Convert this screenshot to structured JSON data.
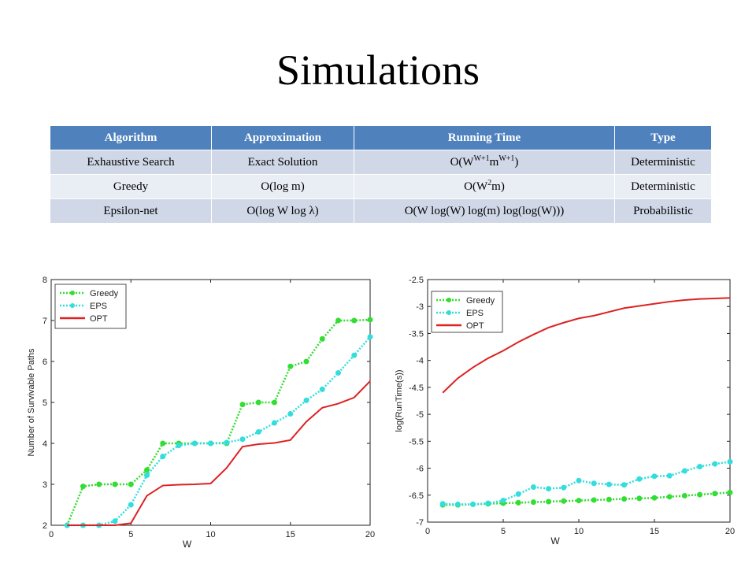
{
  "slide": {
    "title": "Simulations"
  },
  "table": {
    "headers": [
      "Algorithm",
      "Approximation",
      "Running Time",
      "Type"
    ],
    "rows": [
      {
        "algorithm": "Exhaustive Search",
        "approximation": "Exact Solution",
        "running_time": {
          "base": "O(W",
          "sup1": "W+1",
          "mid": "m",
          "sup2": "W+1",
          "end": ")"
        },
        "type": "Deterministic"
      },
      {
        "algorithm": "Greedy",
        "approximation": "O(log m)",
        "running_time": {
          "base": "O(W",
          "sup1": "2",
          "mid": "m)",
          "sup2": "",
          "end": ""
        },
        "type": "Deterministic"
      },
      {
        "algorithm": "Epsilon-net",
        "approximation": "O(log W log λ)",
        "running_time": {
          "base": "O(W log(W) log(m) log(log(W)))",
          "sup1": "",
          "mid": "",
          "sup2": "",
          "end": ""
        },
        "type": "Probabilistic"
      }
    ]
  },
  "chart_data": [
    {
      "type": "line",
      "xlabel": "W",
      "ylabel": "Number of Survivable Paths",
      "xlim": [
        0,
        20
      ],
      "ylim": [
        2,
        8
      ],
      "xticks": [
        0,
        5,
        10,
        15,
        20
      ],
      "yticks": [
        2,
        3,
        4,
        5,
        6,
        7,
        8
      ],
      "legend_position": "top-left",
      "x": [
        1,
        2,
        3,
        4,
        5,
        6,
        7,
        8,
        9,
        10,
        11,
        12,
        13,
        14,
        15,
        16,
        17,
        18,
        19,
        20
      ],
      "series": [
        {
          "name": "Greedy",
          "color": "#33dd33",
          "style": "dotted-marker",
          "values": [
            2,
            2.95,
            3,
            3,
            3,
            3.35,
            4,
            4,
            4,
            4,
            4,
            4.95,
            5,
            5,
            5.88,
            6,
            6.55,
            7,
            7,
            7.02
          ]
        },
        {
          "name": "EPS",
          "color": "#33dddd",
          "style": "dotted-marker",
          "values": [
            2,
            2,
            2,
            2.1,
            2.5,
            3.22,
            3.68,
            3.95,
            4,
            4,
            4.02,
            4.1,
            4.28,
            4.5,
            4.72,
            5.05,
            5.32,
            5.72,
            6.15,
            6.6
          ]
        },
        {
          "name": "OPT",
          "color": "#dd2222",
          "style": "solid",
          "values": [
            2,
            2,
            2,
            2,
            2.05,
            2.72,
            2.97,
            2.99,
            3,
            3.02,
            3.4,
            3.92,
            3.98,
            4.01,
            4.08,
            4.53,
            4.87,
            4.97,
            5.12,
            5.52
          ]
        }
      ]
    },
    {
      "type": "line",
      "xlabel": "W",
      "ylabel": "log(RunTime(s))",
      "xlim": [
        0,
        20
      ],
      "ylim": [
        -7,
        -2.5
      ],
      "xticks": [
        0,
        5,
        10,
        15,
        20
      ],
      "yticks": [
        -7,
        -6.5,
        -6,
        -5.5,
        -5,
        -4.5,
        -4,
        -3.5,
        -3,
        -2.5
      ],
      "legend_position": "top-left",
      "x": [
        1,
        2,
        3,
        4,
        5,
        6,
        7,
        8,
        9,
        10,
        11,
        12,
        13,
        14,
        15,
        16,
        17,
        18,
        19,
        20
      ],
      "series": [
        {
          "name": "Greedy",
          "color": "#33dd33",
          "style": "dotted-marker",
          "values": [
            -6.68,
            -6.68,
            -6.67,
            -6.66,
            -6.65,
            -6.64,
            -6.63,
            -6.62,
            -6.61,
            -6.6,
            -6.59,
            -6.58,
            -6.57,
            -6.56,
            -6.55,
            -6.53,
            -6.51,
            -6.49,
            -6.47,
            -6.45
          ]
        },
        {
          "name": "EPS",
          "color": "#33dddd",
          "style": "dotted-marker",
          "values": [
            -6.66,
            -6.67,
            -6.67,
            -6.65,
            -6.6,
            -6.48,
            -6.35,
            -6.38,
            -6.36,
            -6.23,
            -6.28,
            -6.3,
            -6.31,
            -6.2,
            -6.15,
            -6.14,
            -6.05,
            -5.97,
            -5.92,
            -5.88
          ]
        },
        {
          "name": "OPT",
          "color": "#dd2222",
          "style": "solid",
          "values": [
            -4.6,
            -4.33,
            -4.13,
            -3.96,
            -3.82,
            -3.66,
            -3.52,
            -3.39,
            -3.3,
            -3.22,
            -3.17,
            -3.1,
            -3.03,
            -2.99,
            -2.95,
            -2.91,
            -2.88,
            -2.86,
            -2.85,
            -2.84
          ]
        }
      ]
    }
  ]
}
